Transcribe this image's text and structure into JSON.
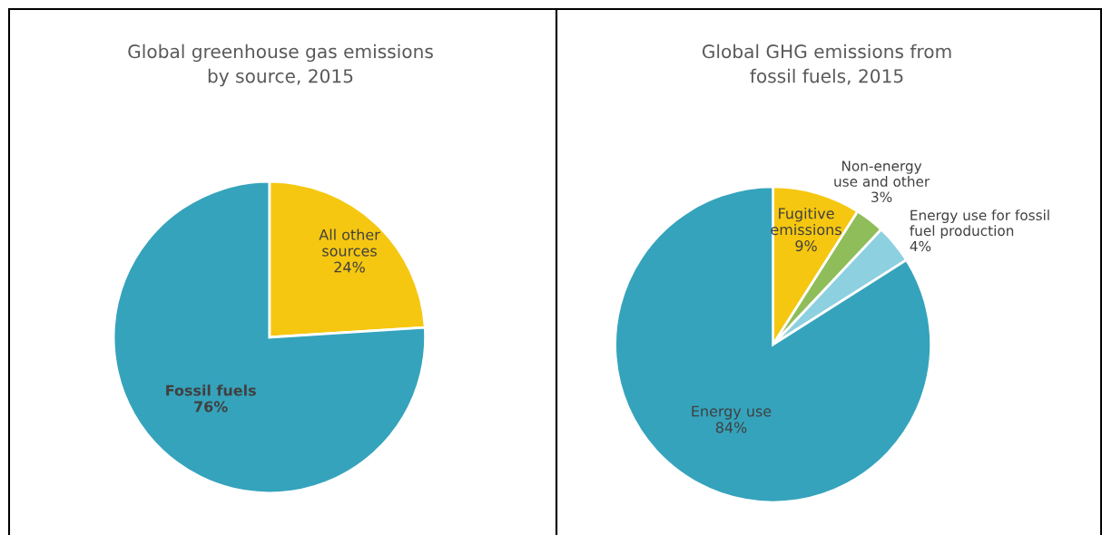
{
  "chart_data": [
    {
      "type": "pie",
      "title": "Global greenhouse gas emissions\nby source, 2015",
      "categories": [
        "All other\nsources",
        "Fossil fuels"
      ],
      "values": [
        24,
        76
      ],
      "value_labels": [
        "24%",
        "76%"
      ],
      "colors": [
        "#f5c710",
        "#35a3bc"
      ]
    },
    {
      "type": "pie",
      "title": "Global GHG emissions from\nfossil fuels, 2015",
      "categories": [
        "Fugitive\nemissions",
        "Non-energy\nuse and other",
        "Energy use for fossil\nfuel production",
        "Energy use"
      ],
      "values": [
        9,
        3,
        4,
        84
      ],
      "value_labels": [
        "9%",
        "3%",
        "4%",
        "84%"
      ],
      "colors": [
        "#f5c710",
        "#8fbd5a",
        "#8dd0e0",
        "#35a3bc"
      ]
    }
  ]
}
